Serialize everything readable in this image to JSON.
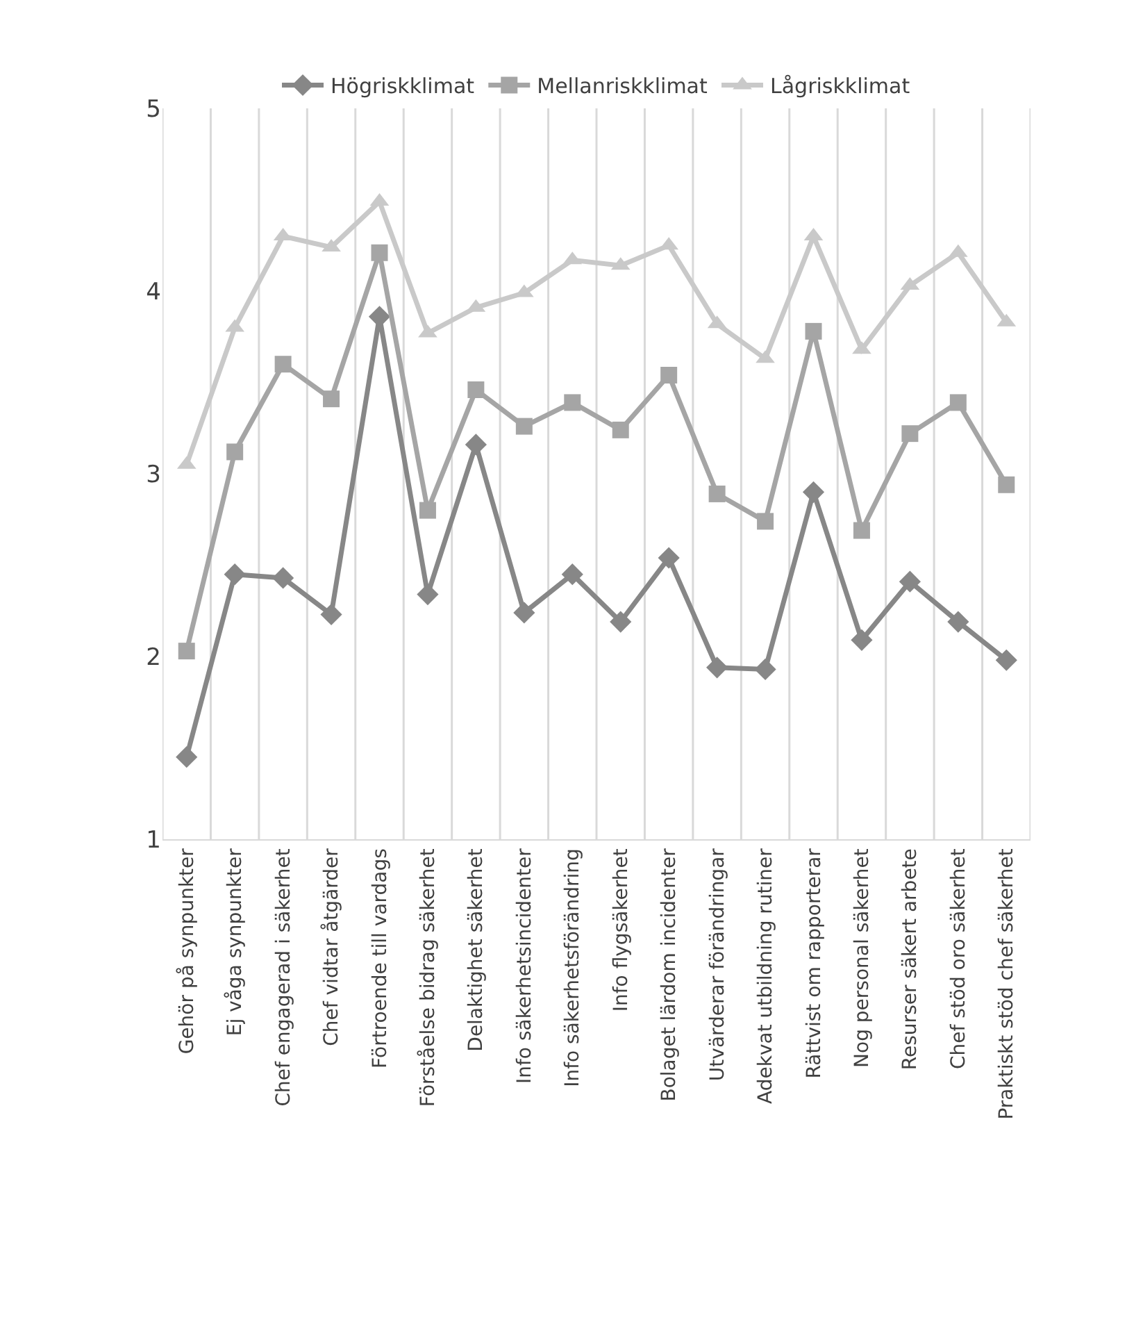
{
  "chart_data": {
    "type": "line",
    "categories": [
      "Gehör på synpunkter",
      "Ej våga synpunkter",
      "Chef engagerad i säkerhet",
      "Chef vidtar åtgärder",
      "Förtroende till vardags",
      "Förståelse bidrag säkerhet",
      "Delaktighet säkerhet",
      "Info säkerhetsincidenter",
      "Info säkerhetsförändring",
      "Info flygsäkerhet",
      "Bolaget lärdom incidenter",
      "Utvärderar förändringar",
      "Adekvat utbildning rutiner",
      "Rättvist om rapporterar",
      "Nog personal säkerhet",
      "Resurser säkert arbete",
      "Chef stöd oro säkerhet",
      "Praktiskt stöd chef säkerhet"
    ],
    "series": [
      {
        "name": "Högriskklimat",
        "color": "#878787",
        "marker": "diamond",
        "values": [
          1.45,
          2.45,
          2.43,
          2.23,
          3.86,
          2.34,
          3.16,
          2.24,
          2.45,
          2.19,
          2.54,
          1.94,
          1.93,
          2.9,
          2.09,
          2.41,
          2.19,
          1.98
        ]
      },
      {
        "name": "Mellanriskklimat",
        "color": "#a5a5a5",
        "marker": "square",
        "values": [
          2.03,
          3.12,
          3.6,
          3.41,
          4.21,
          2.8,
          3.46,
          3.26,
          3.39,
          3.24,
          3.54,
          2.89,
          2.74,
          3.78,
          2.69,
          3.22,
          3.39,
          2.94
        ]
      },
      {
        "name": "Lågriskklimat",
        "color": "#c9c9c9",
        "marker": "triangle",
        "values": [
          3.05,
          3.8,
          4.3,
          4.24,
          4.49,
          3.77,
          3.91,
          3.99,
          4.17,
          4.14,
          4.25,
          3.82,
          3.63,
          4.3,
          3.68,
          4.03,
          4.21,
          3.83
        ]
      }
    ],
    "ylim": [
      1,
      5
    ],
    "yticks": [
      1,
      2,
      3,
      4,
      5
    ],
    "grid": "x",
    "legend": "top",
    "line_style": "solid"
  }
}
